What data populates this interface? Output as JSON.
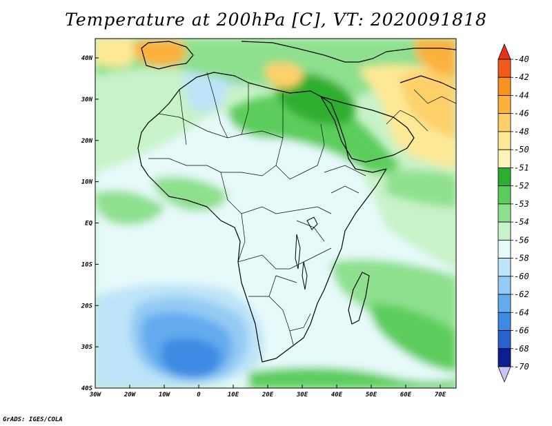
{
  "title": "Temperature at 200hPa [C], VT: 2020091818",
  "credit": "GrADS: IGES/COLA",
  "map": {
    "lat_labels": [
      "40N",
      "30N",
      "20N",
      "10N",
      "EQ",
      "10S",
      "20S",
      "30S",
      "40S"
    ],
    "lon_labels": [
      "30W",
      "20W",
      "10W",
      "0",
      "10E",
      "20E",
      "30E",
      "40E",
      "50E",
      "60E",
      "70E"
    ]
  },
  "colorbar": {
    "labels": [
      "-40",
      "-42",
      "-44",
      "-46",
      "-48",
      "-50",
      "-51",
      "-52",
      "-53",
      "-54",
      "-56",
      "-58",
      "-60",
      "-62",
      "-64",
      "-66",
      "-68",
      "-70"
    ],
    "colors": {
      "top_arrow": "#e8321d",
      "-40": "#f05a1a",
      "-42": "#f9921e",
      "-44": "#fbb13c",
      "-46": "#fdd06a",
      "-48": "#fee996",
      "-50": "#fdf6b8",
      "-51": "#2eae2e",
      "-52": "#5ccd5c",
      "-53": "#8ee08e",
      "-54": "#c8f2c8",
      "-56": "#e6fafa",
      "-58": "#bde4f8",
      "-60": "#94cbf4",
      "-62": "#64abee",
      "-64": "#3d8ae4",
      "-66": "#2862d0",
      "-68": "#0c1e90",
      "bottom_arrow": "#c8c8f8"
    }
  }
}
